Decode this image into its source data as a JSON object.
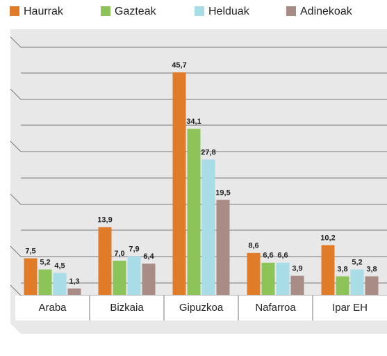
{
  "chart_data": {
    "type": "bar",
    "categories": [
      "Araba",
      "Bizkaia",
      "Gipuzkoa",
      "Nafarroa",
      "Ipar EH"
    ],
    "series": [
      {
        "name": "Haurrak",
        "color": "#e07b2a",
        "values": [
          7.5,
          13.9,
          45.7,
          8.6,
          10.2
        ],
        "value_labels": [
          "7,5",
          "13,9",
          "45,7",
          "8,6",
          "10,2"
        ]
      },
      {
        "name": "Gazteak",
        "color": "#8dc45a",
        "values": [
          5.2,
          7.0,
          34.1,
          6.6,
          3.8
        ],
        "value_labels": [
          "5,2",
          "7,0",
          "34,1",
          "6,6",
          "3,8"
        ]
      },
      {
        "name": "Helduak",
        "color": "#a8dde8",
        "values": [
          4.5,
          7.9,
          27.8,
          6.6,
          5.2
        ],
        "value_labels": [
          "4,5",
          "7,9",
          "27,8",
          "6,6",
          "5,2"
        ]
      },
      {
        "name": "Adinekoak",
        "color": "#a98c85",
        "values": [
          1.3,
          6.4,
          19.5,
          3.9,
          3.8
        ],
        "value_labels": [
          "1,3",
          "6,4",
          "19,5",
          "3,9",
          "3,8"
        ]
      }
    ],
    "ylim": [
      0,
      50
    ]
  }
}
